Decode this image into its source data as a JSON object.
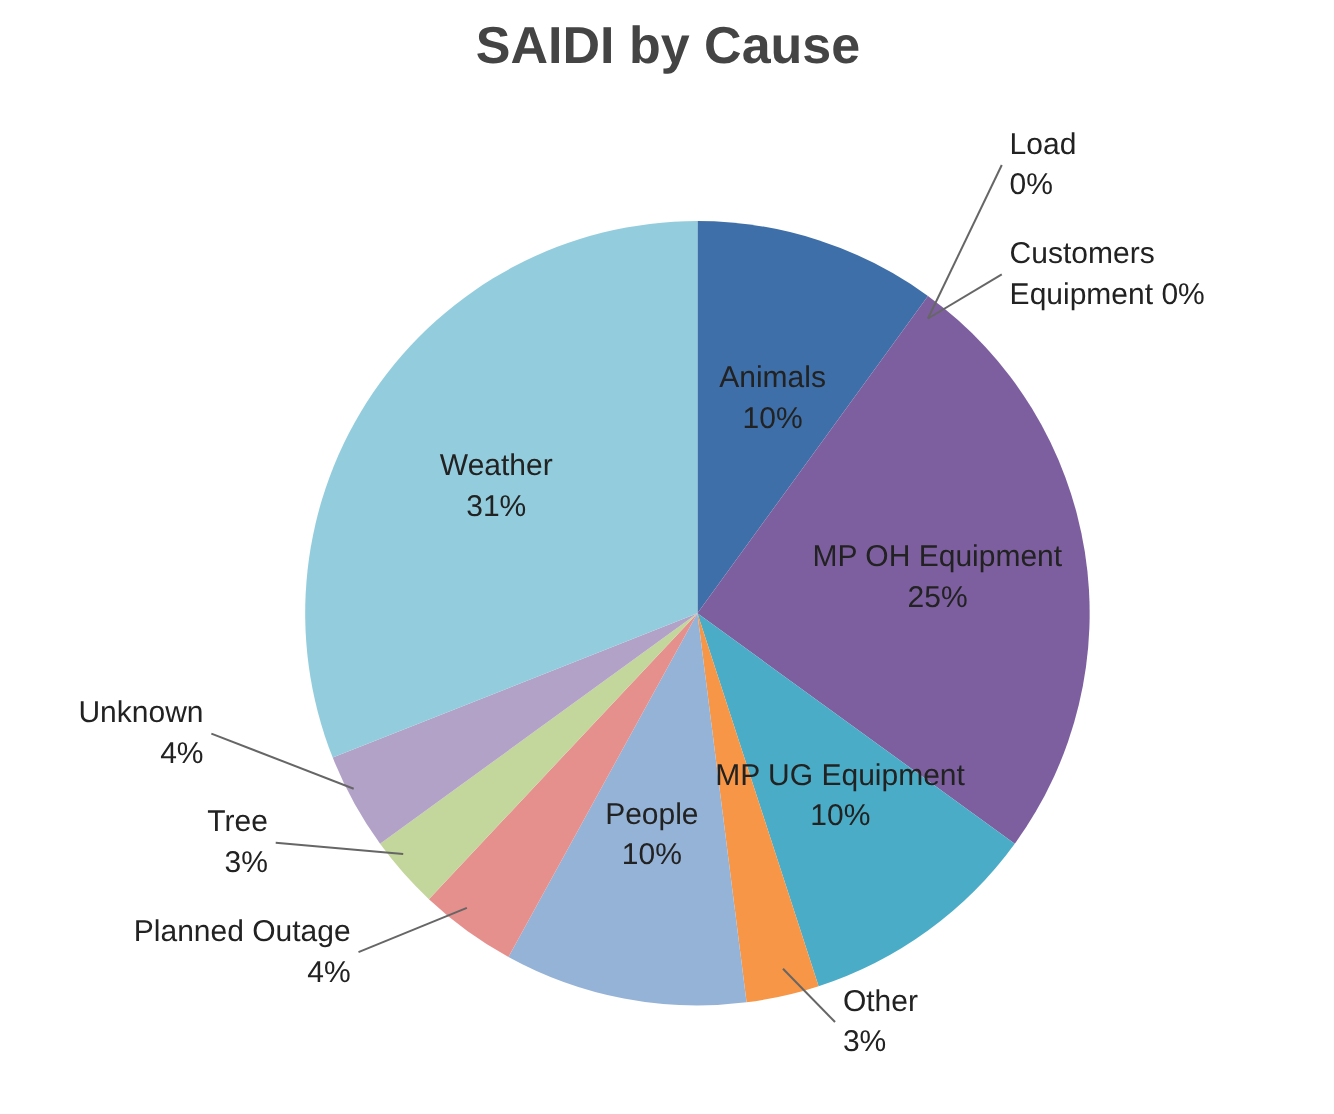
{
  "chart_data": {
    "type": "pie",
    "title": "SAIDI by Cause",
    "categories": [
      "Animals",
      "Customers Equipment",
      "Load",
      "MP OH Equipment",
      "MP UG Equipment",
      "Other",
      "People",
      "Planned Outage",
      "Tree",
      "Unknown",
      "Weather"
    ],
    "values": [
      10,
      0,
      0,
      25,
      10,
      3,
      10,
      4,
      3,
      4,
      31
    ],
    "value_labels": [
      "10%",
      "0%",
      "0%",
      "25%",
      "10%",
      "3%",
      "10%",
      "4%",
      "3%",
      "4%",
      "31%"
    ],
    "colors": [
      "#3e6fa8",
      "#c0504d",
      "#9bbb59",
      "#7d5fa0",
      "#4aacc6",
      "#f79646",
      "#95b3d7",
      "#e6908e",
      "#c3d69b",
      "#b3a2c7",
      "#93cddd"
    ]
  }
}
